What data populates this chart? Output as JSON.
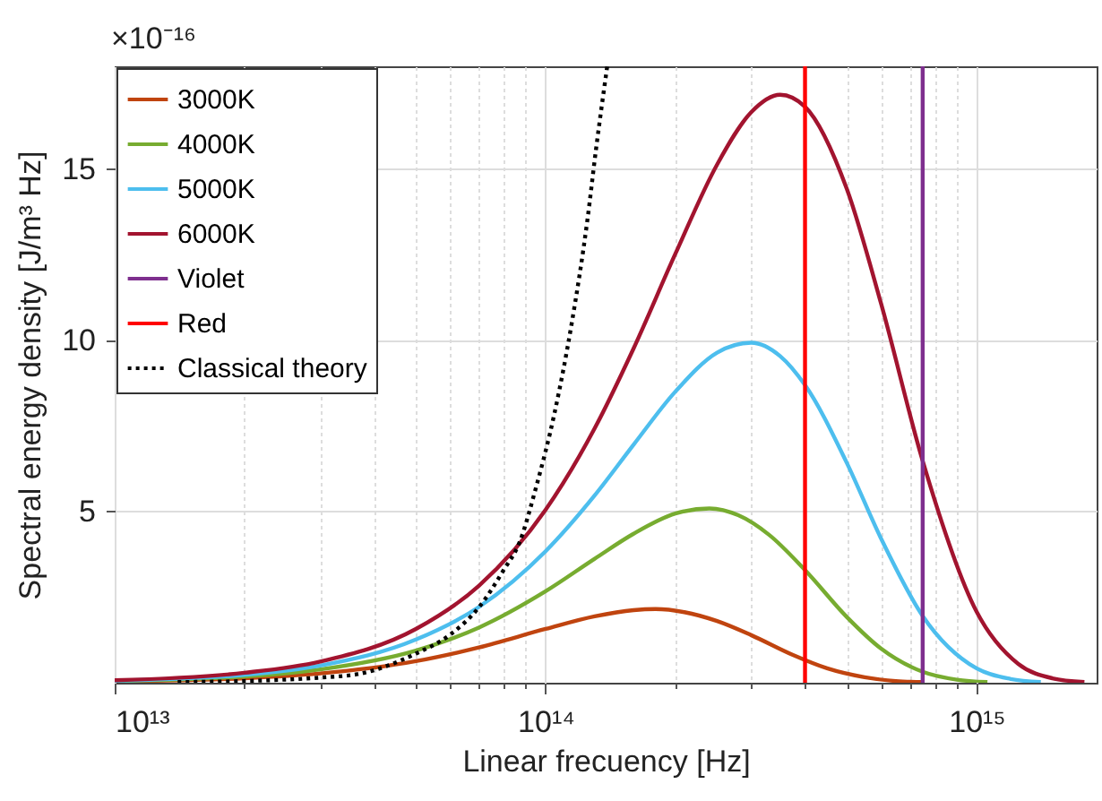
{
  "chart_data": {
    "type": "line",
    "xlabel": "Linear frecuency [Hz]",
    "ylabel": "Spectral energy density [J/m³ Hz]",
    "annotations": [
      "×10⁻¹⁶"
    ],
    "log": "x",
    "grid": true,
    "legend": "top left",
    "xlim": [
      10000000000000.0,
      1900000000000000.0
    ],
    "ylim": [
      0,
      18
    ],
    "xticks": [
      {
        "value": 10000000000000.0,
        "label": "10¹³"
      },
      {
        "value": 20000000000000.0,
        "label": null
      },
      {
        "value": 30000000000000.0,
        "label": null
      },
      {
        "value": 40000000000000.0,
        "label": null
      },
      {
        "value": 50000000000000.0,
        "label": null
      },
      {
        "value": 60000000000000.0,
        "label": null
      },
      {
        "value": 70000000000000.0,
        "label": null
      },
      {
        "value": 80000000000000.0,
        "label": null
      },
      {
        "value": 90000000000000.0,
        "label": null
      },
      {
        "value": 100000000000000.0,
        "label": "10¹⁴"
      },
      {
        "value": 200000000000000.0,
        "label": null
      },
      {
        "value": 300000000000000.0,
        "label": null
      },
      {
        "value": 400000000000000.0,
        "label": null
      },
      {
        "value": 500000000000000.0,
        "label": null
      },
      {
        "value": 600000000000000.0,
        "label": null
      },
      {
        "value": 700000000000000.0,
        "label": null
      },
      {
        "value": 800000000000000.0,
        "label": null
      },
      {
        "value": 900000000000000.0,
        "label": null
      },
      {
        "value": 1000000000000000.0,
        "label": "10¹⁵"
      }
    ],
    "yticks": [
      5,
      10,
      15
    ],
    "series": [
      {
        "name": "3000K",
        "color": "#c0440f",
        "x": [
          10000000000000.0,
          20000000000000.0,
          30000000000000.0,
          50000000000000.0,
          70000000000000.0,
          100000000000000.0,
          130000000000000.0,
          160000000000000.0,
          180000000000000.0,
          210000000000000.0,
          250000000000000.0,
          300000000000000.0,
          375000000000000.0,
          450000000000000.0,
          550000000000000.0,
          650000000000000.0,
          750000000000000.0
        ],
        "values": [
          0.04,
          0.13,
          0.27,
          0.63,
          1.03,
          1.57,
          1.94,
          2.12,
          2.15,
          2.06,
          1.8,
          1.39,
          0.81,
          0.42,
          0.16,
          0.05,
          0.02
        ]
      },
      {
        "name": "4000K",
        "color": "#77ac30",
        "x": [
          10000000000000.0,
          20000000000000.0,
          30000000000000.0,
          50000000000000.0,
          70000000000000.0,
          100000000000000.0,
          130000000000000.0,
          160000000000000.0,
          200000000000000.0,
          240000000000000.0,
          280000000000000.0,
          330000000000000.0,
          400000000000000.0,
          500000000000000.0,
          600000000000000.0,
          750000000000000.0,
          900000000000000.0,
          1060000000000000.0
        ],
        "values": [
          0.05,
          0.18,
          0.39,
          0.94,
          1.61,
          2.67,
          3.62,
          4.35,
          4.94,
          5.09,
          4.89,
          4.32,
          3.29,
          1.92,
          1.0,
          0.32,
          0.09,
          0.02
        ]
      },
      {
        "name": "5000K",
        "color": "#4dbeee",
        "x": [
          10000000000000.0,
          20000000000000.0,
          30000000000000.0,
          50000000000000.0,
          70000000000000.0,
          100000000000000.0,
          130000000000000.0,
          160000000000000.0,
          200000000000000.0,
          250000000000000.0,
          300000000000000.0,
          350000000000000.0,
          400000000000000.0,
          500000000000000.0,
          600000000000000.0,
          750000000000000.0,
          1000000000000000.0,
          1200000000000000.0,
          1410000000000000.0
        ],
        "values": [
          0.06,
          0.23,
          0.5,
          1.26,
          2.21,
          3.84,
          5.47,
          6.95,
          8.5,
          9.64,
          9.93,
          9.54,
          8.69,
          6.42,
          4.22,
          1.95,
          0.42,
          0.11,
          0.02
        ]
      },
      {
        "name": "6000K",
        "color": "#a2142f",
        "x": [
          10000000000000.0,
          20000000000000.0,
          30000000000000.0,
          50000000000000.0,
          70000000000000.0,
          100000000000000.0,
          130000000000000.0,
          160000000000000.0,
          200000000000000.0,
          250000000000000.0,
          300000000000000.0,
          350000000000000.0,
          400000000000000.0,
          500000000000000.0,
          600000000000000.0,
          750000000000000.0,
          1000000000000000.0,
          1250000000000000.0,
          1500000000000000.0,
          1780000000000000.0
        ],
        "values": [
          0.07,
          0.29,
          0.62,
          1.57,
          2.83,
          5.05,
          7.43,
          9.76,
          12.52,
          15.13,
          16.66,
          17.17,
          16.82,
          14.42,
          11.09,
          6.48,
          2.08,
          0.55,
          0.13,
          0.02
        ]
      },
      {
        "name": "Violet",
        "color": "#7e2f8e",
        "x": [
          750000000000000.0,
          750000000000000.0
        ],
        "values": [
          0,
          18
        ]
      },
      {
        "name": "Red",
        "color": "#ff0000",
        "x": [
          400000000000000.0,
          400000000000000.0
        ],
        "values": [
          0,
          18
        ]
      },
      {
        "name": "Classical theory",
        "color": "#000000",
        "line_style": "dotted",
        "x": [
          14000000000000.0,
          20000000000000.0,
          30000000000000.0,
          36600000000000.0,
          50000000000000.0,
          60000000000000.0,
          70000000000000.0,
          80000000000000.0,
          87000000000000.0,
          95000000000000.0,
          105000000000000.0,
          115000000000000.0,
          125000000000000.0,
          131000000000000.0,
          139000000000000.0
        ],
        "values": [
          0.02,
          0.05,
          0.15,
          0.25,
          0.85,
          1.4,
          2.2,
          3.3,
          4.1,
          5.7,
          7.9,
          10.5,
          13.5,
          15.6,
          18
        ]
      }
    ]
  }
}
